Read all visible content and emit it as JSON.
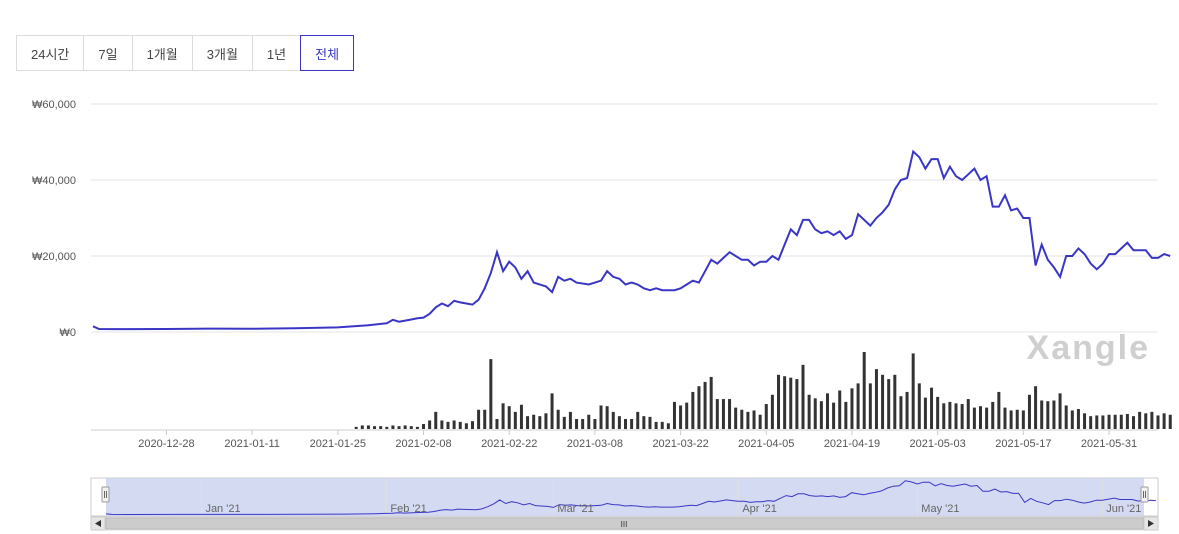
{
  "range_tabs": [
    {
      "label": "24시간",
      "active": false
    },
    {
      "label": "7일",
      "active": false
    },
    {
      "label": "1개월",
      "active": false
    },
    {
      "label": "3개월",
      "active": false
    },
    {
      "label": "1년",
      "active": false
    },
    {
      "label": "전체",
      "active": true
    }
  ],
  "watermark": "Xangle",
  "colors": {
    "line": "#3a36c5",
    "volume": "#333333",
    "navigator_fill": "#ccd3ee",
    "grid": "#e6e6e6",
    "active_tab": "#3a36c5"
  },
  "chart_data": {
    "type": "line",
    "x_start": "2020-12-16",
    "x_end": "2021-06-08",
    "y_ticks": [
      "₩60,000",
      "₩40,000",
      "₩20,000",
      "₩0"
    ],
    "y_tick_values": [
      60000,
      40000,
      20000,
      0
    ],
    "ylim": [
      0,
      60000
    ],
    "x_tick_labels": [
      "2020-12-28",
      "2021-01-11",
      "2021-01-25",
      "2021-02-08",
      "2021-02-22",
      "2021-03-08",
      "2021-03-22",
      "2021-04-05",
      "2021-04-19",
      "2021-05-03",
      "2021-05-17",
      "2021-05-31"
    ],
    "x_tick_dates": [
      "2020-12-28",
      "2021-01-11",
      "2021-01-25",
      "2021-02-08",
      "2021-02-22",
      "2021-03-08",
      "2021-03-22",
      "2021-04-05",
      "2021-04-19",
      "2021-05-03",
      "2021-05-17",
      "2021-05-31"
    ],
    "price_series": [
      [
        "2020-12-16",
        1500
      ],
      [
        "2020-12-17",
        800
      ],
      [
        "2020-12-20",
        750
      ],
      [
        "2020-12-28",
        800
      ],
      [
        "2021-01-04",
        900
      ],
      [
        "2021-01-11",
        850
      ],
      [
        "2021-01-18",
        1000
      ],
      [
        "2021-01-25",
        1200
      ],
      [
        "2021-01-30",
        1800
      ],
      [
        "2021-02-02",
        2300
      ],
      [
        "2021-02-03",
        3200
      ],
      [
        "2021-02-04",
        2700
      ],
      [
        "2021-02-06",
        3300
      ],
      [
        "2021-02-07",
        3600
      ],
      [
        "2021-02-08",
        3800
      ],
      [
        "2021-02-09",
        4800
      ],
      [
        "2021-02-10",
        6500
      ],
      [
        "2021-02-11",
        7500
      ],
      [
        "2021-02-12",
        6800
      ],
      [
        "2021-02-13",
        8200
      ],
      [
        "2021-02-14",
        7800
      ],
      [
        "2021-02-16",
        7200
      ],
      [
        "2021-02-17",
        8500
      ],
      [
        "2021-02-18",
        11500
      ],
      [
        "2021-02-19",
        15500
      ],
      [
        "2021-02-20",
        21000
      ],
      [
        "2021-02-21",
        16000
      ],
      [
        "2021-02-22",
        18500
      ],
      [
        "2021-02-23",
        17000
      ],
      [
        "2021-02-24",
        14000
      ],
      [
        "2021-02-25",
        16000
      ],
      [
        "2021-02-26",
        13000
      ],
      [
        "2021-02-28",
        12000
      ],
      [
        "2021-03-01",
        10500
      ],
      [
        "2021-03-02",
        14500
      ],
      [
        "2021-03-03",
        13500
      ],
      [
        "2021-03-04",
        14000
      ],
      [
        "2021-03-05",
        13000
      ],
      [
        "2021-03-07",
        12500
      ],
      [
        "2021-03-09",
        13500
      ],
      [
        "2021-03-10",
        16000
      ],
      [
        "2021-03-11",
        14500
      ],
      [
        "2021-03-12",
        14000
      ],
      [
        "2021-03-13",
        12500
      ],
      [
        "2021-03-14",
        13000
      ],
      [
        "2021-03-15",
        12500
      ],
      [
        "2021-03-16",
        11500
      ],
      [
        "2021-03-17",
        11000
      ],
      [
        "2021-03-18",
        11500
      ],
      [
        "2021-03-19",
        11000
      ],
      [
        "2021-03-21",
        11000
      ],
      [
        "2021-03-22",
        11500
      ],
      [
        "2021-03-23",
        12500
      ],
      [
        "2021-03-24",
        13500
      ],
      [
        "2021-03-25",
        13000
      ],
      [
        "2021-03-26",
        16000
      ],
      [
        "2021-03-27",
        19000
      ],
      [
        "2021-03-28",
        18000
      ],
      [
        "2021-03-29",
        19500
      ],
      [
        "2021-03-30",
        21000
      ],
      [
        "2021-03-31",
        20000
      ],
      [
        "2021-04-01",
        19000
      ],
      [
        "2021-04-02",
        19000
      ],
      [
        "2021-04-03",
        17500
      ],
      [
        "2021-04-04",
        18500
      ],
      [
        "2021-04-05",
        18500
      ],
      [
        "2021-04-06",
        20000
      ],
      [
        "2021-04-07",
        19000
      ],
      [
        "2021-04-08",
        23000
      ],
      [
        "2021-04-09",
        27000
      ],
      [
        "2021-04-10",
        25500
      ],
      [
        "2021-04-11",
        29500
      ],
      [
        "2021-04-12",
        29500
      ],
      [
        "2021-04-13",
        27000
      ],
      [
        "2021-04-14",
        26000
      ],
      [
        "2021-04-15",
        26500
      ],
      [
        "2021-04-16",
        25500
      ],
      [
        "2021-04-17",
        26500
      ],
      [
        "2021-04-18",
        24500
      ],
      [
        "2021-04-19",
        25500
      ],
      [
        "2021-04-20",
        31000
      ],
      [
        "2021-04-21",
        29500
      ],
      [
        "2021-04-22",
        28000
      ],
      [
        "2021-04-23",
        30000
      ],
      [
        "2021-04-24",
        31500
      ],
      [
        "2021-04-25",
        33500
      ],
      [
        "2021-04-26",
        37500
      ],
      [
        "2021-04-27",
        40000
      ],
      [
        "2021-04-28",
        40500
      ],
      [
        "2021-04-29",
        47500
      ],
      [
        "2021-04-30",
        46000
      ],
      [
        "2021-05-01",
        43000
      ],
      [
        "2021-05-02",
        45500
      ],
      [
        "2021-05-03",
        45500
      ],
      [
        "2021-05-04",
        40500
      ],
      [
        "2021-05-05",
        43500
      ],
      [
        "2021-05-06",
        41000
      ],
      [
        "2021-05-07",
        40000
      ],
      [
        "2021-05-08",
        41500
      ],
      [
        "2021-05-09",
        43000
      ],
      [
        "2021-05-10",
        40000
      ],
      [
        "2021-05-11",
        41000
      ],
      [
        "2021-05-12",
        33000
      ],
      [
        "2021-05-13",
        33000
      ],
      [
        "2021-05-14",
        36000
      ],
      [
        "2021-05-15",
        32000
      ],
      [
        "2021-05-16",
        32500
      ],
      [
        "2021-05-17",
        30000
      ],
      [
        "2021-05-18",
        30000
      ],
      [
        "2021-05-19",
        17500
      ],
      [
        "2021-05-20",
        23000
      ],
      [
        "2021-05-21",
        19000
      ],
      [
        "2021-05-22",
        17000
      ],
      [
        "2021-05-23",
        14500
      ],
      [
        "2021-05-24",
        20000
      ],
      [
        "2021-05-25",
        20000
      ],
      [
        "2021-05-26",
        22000
      ],
      [
        "2021-05-27",
        20500
      ],
      [
        "2021-05-28",
        18000
      ],
      [
        "2021-05-29",
        16500
      ],
      [
        "2021-05-30",
        18000
      ],
      [
        "2021-05-31",
        20500
      ],
      [
        "2021-06-01",
        20500
      ],
      [
        "2021-06-02",
        22000
      ],
      [
        "2021-06-03",
        23500
      ],
      [
        "2021-06-04",
        21500
      ],
      [
        "2021-06-05",
        21500
      ],
      [
        "2021-06-06",
        21500
      ],
      [
        "2021-06-07",
        19500
      ],
      [
        "2021-06-08",
        19500
      ],
      [
        "2021-06-09",
        20500
      ],
      [
        "2021-06-10",
        20000
      ]
    ],
    "volume_series": [
      [
        "2021-01-28",
        3
      ],
      [
        "2021-01-29",
        5
      ],
      [
        "2021-01-30",
        5
      ],
      [
        "2021-01-31",
        4
      ],
      [
        "2021-02-01",
        4
      ],
      [
        "2021-02-02",
        3
      ],
      [
        "2021-02-03",
        5
      ],
      [
        "2021-02-04",
        4
      ],
      [
        "2021-02-05",
        5
      ],
      [
        "2021-02-06",
        4
      ],
      [
        "2021-02-07",
        3
      ],
      [
        "2021-02-08",
        7
      ],
      [
        "2021-02-09",
        12
      ],
      [
        "2021-02-10",
        24
      ],
      [
        "2021-02-11",
        12
      ],
      [
        "2021-02-12",
        10
      ],
      [
        "2021-02-13",
        12
      ],
      [
        "2021-02-14",
        10
      ],
      [
        "2021-02-15",
        8
      ],
      [
        "2021-02-16",
        11
      ],
      [
        "2021-02-17",
        27
      ],
      [
        "2021-02-18",
        27
      ],
      [
        "2021-02-19",
        98
      ],
      [
        "2021-02-20",
        14
      ],
      [
        "2021-02-21",
        36
      ],
      [
        "2021-02-22",
        32
      ],
      [
        "2021-02-23",
        24
      ],
      [
        "2021-02-24",
        34
      ],
      [
        "2021-02-25",
        18
      ],
      [
        "2021-02-26",
        20
      ],
      [
        "2021-02-27",
        18
      ],
      [
        "2021-02-28",
        22
      ],
      [
        "2021-03-01",
        50
      ],
      [
        "2021-03-02",
        27
      ],
      [
        "2021-03-03",
        17
      ],
      [
        "2021-03-04",
        24
      ],
      [
        "2021-03-05",
        14
      ],
      [
        "2021-03-06",
        14
      ],
      [
        "2021-03-07",
        20
      ],
      [
        "2021-03-08",
        14
      ],
      [
        "2021-03-09",
        33
      ],
      [
        "2021-03-10",
        32
      ],
      [
        "2021-03-11",
        24
      ],
      [
        "2021-03-12",
        18
      ],
      [
        "2021-03-13",
        14
      ],
      [
        "2021-03-14",
        14
      ],
      [
        "2021-03-15",
        24
      ],
      [
        "2021-03-16",
        18
      ],
      [
        "2021-03-17",
        17
      ],
      [
        "2021-03-18",
        10
      ],
      [
        "2021-03-19",
        10
      ],
      [
        "2021-03-20",
        8
      ],
      [
        "2021-03-21",
        38
      ],
      [
        "2021-03-22",
        33
      ],
      [
        "2021-03-23",
        37
      ],
      [
        "2021-03-24",
        52
      ],
      [
        "2021-03-25",
        60
      ],
      [
        "2021-03-26",
        66
      ],
      [
        "2021-03-27",
        73
      ],
      [
        "2021-03-28",
        42
      ],
      [
        "2021-03-29",
        42
      ],
      [
        "2021-03-30",
        42
      ],
      [
        "2021-03-31",
        30
      ],
      [
        "2021-04-01",
        27
      ],
      [
        "2021-04-02",
        24
      ],
      [
        "2021-04-03",
        26
      ],
      [
        "2021-04-04",
        20
      ],
      [
        "2021-04-05",
        35
      ],
      [
        "2021-04-06",
        48
      ],
      [
        "2021-04-07",
        76
      ],
      [
        "2021-04-08",
        74
      ],
      [
        "2021-04-09",
        72
      ],
      [
        "2021-04-10",
        70
      ],
      [
        "2021-04-11",
        90
      ],
      [
        "2021-04-12",
        48
      ],
      [
        "2021-04-13",
        43
      ],
      [
        "2021-04-14",
        39
      ],
      [
        "2021-04-15",
        50
      ],
      [
        "2021-04-16",
        37
      ],
      [
        "2021-04-17",
        54
      ],
      [
        "2021-04-18",
        38
      ],
      [
        "2021-04-19",
        57
      ],
      [
        "2021-04-20",
        64
      ],
      [
        "2021-04-21",
        108
      ],
      [
        "2021-04-22",
        64
      ],
      [
        "2021-04-23",
        84
      ],
      [
        "2021-04-24",
        76
      ],
      [
        "2021-04-25",
        70
      ],
      [
        "2021-04-26",
        76
      ],
      [
        "2021-04-27",
        46
      ],
      [
        "2021-04-28",
        52
      ],
      [
        "2021-04-29",
        106
      ],
      [
        "2021-04-30",
        64
      ],
      [
        "2021-05-01",
        44
      ],
      [
        "2021-05-02",
        58
      ],
      [
        "2021-05-03",
        45
      ],
      [
        "2021-05-04",
        36
      ],
      [
        "2021-05-05",
        38
      ],
      [
        "2021-05-06",
        36
      ],
      [
        "2021-05-07",
        35
      ],
      [
        "2021-05-08",
        42
      ],
      [
        "2021-05-09",
        30
      ],
      [
        "2021-05-10",
        32
      ],
      [
        "2021-05-11",
        30
      ],
      [
        "2021-05-12",
        38
      ],
      [
        "2021-05-13",
        52
      ],
      [
        "2021-05-14",
        30
      ],
      [
        "2021-05-15",
        26
      ],
      [
        "2021-05-16",
        27
      ],
      [
        "2021-05-17",
        26
      ],
      [
        "2021-05-18",
        48
      ],
      [
        "2021-05-19",
        60
      ],
      [
        "2021-05-20",
        40
      ],
      [
        "2021-05-21",
        39
      ],
      [
        "2021-05-22",
        40
      ],
      [
        "2021-05-23",
        50
      ],
      [
        "2021-05-24",
        33
      ],
      [
        "2021-05-25",
        26
      ],
      [
        "2021-05-26",
        28
      ],
      [
        "2021-05-27",
        22
      ],
      [
        "2021-05-28",
        18
      ],
      [
        "2021-05-29",
        19
      ],
      [
        "2021-05-30",
        19
      ],
      [
        "2021-05-31",
        20
      ],
      [
        "2021-06-01",
        20
      ],
      [
        "2021-06-02",
        20
      ],
      [
        "2021-06-03",
        21
      ],
      [
        "2021-06-04",
        18
      ],
      [
        "2021-06-05",
        24
      ],
      [
        "2021-06-06",
        22
      ],
      [
        "2021-06-07",
        24
      ],
      [
        "2021-06-08",
        19
      ],
      [
        "2021-06-09",
        22
      ],
      [
        "2021-06-10",
        20
      ]
    ],
    "navigator": {
      "month_labels": [
        "Jan '21",
        "Feb '21",
        "Mar '21",
        "Apr '21",
        "May '21",
        "Jun '21"
      ],
      "month_dates": [
        "2021-01-01",
        "2021-02-01",
        "2021-03-01",
        "2021-04-01",
        "2021-05-01",
        "2021-06-01"
      ],
      "scroll_grip": "III"
    }
  }
}
